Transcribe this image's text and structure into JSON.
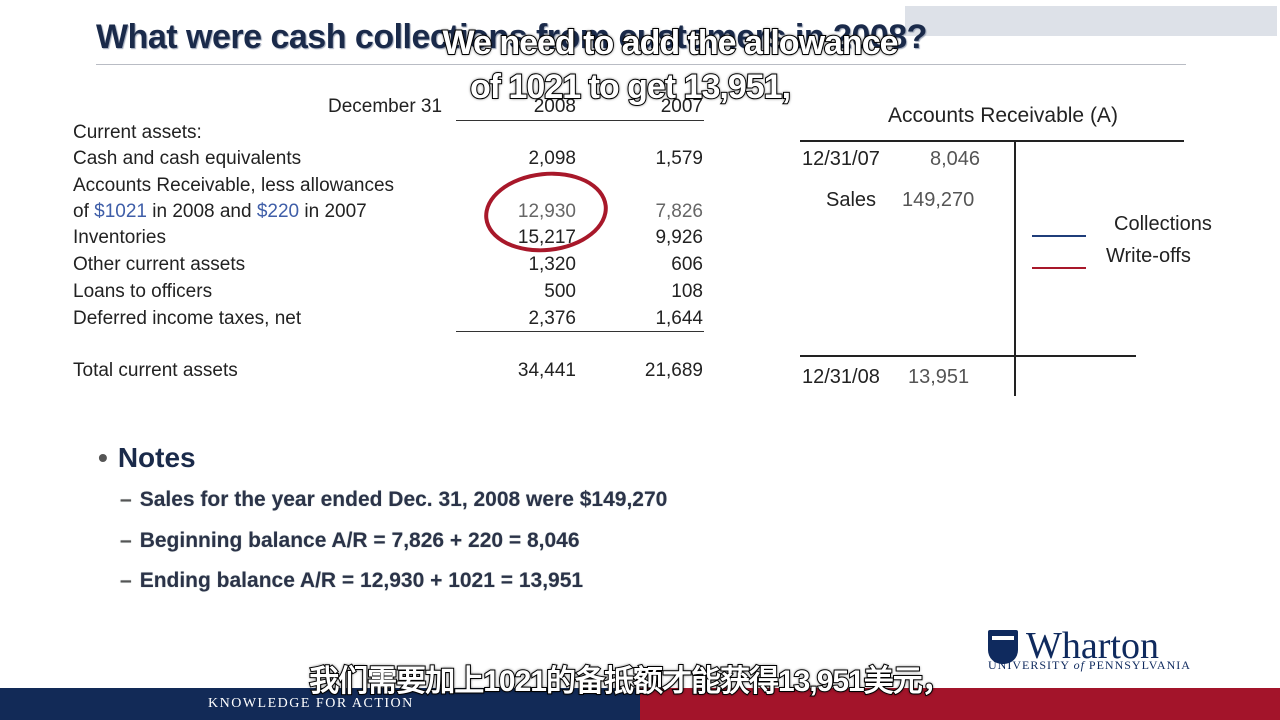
{
  "slide": {
    "title": "What were cash collections from customers in 2008?",
    "subtitle_en_line1": "We need to add the allowance",
    "subtitle_en_line2": "of 1021 to get 13,951,",
    "subtitle_zh": "我们需要加上1021的备抵额才能获得13,951美元，"
  },
  "balance_sheet": {
    "header_label": "December 31",
    "col_2008": "2008",
    "col_2007": "2007",
    "section_label": "Current assets:",
    "rows": [
      {
        "label": "Cash and cash equivalents",
        "v2008": "2,098",
        "v2007": "1,579"
      },
      {
        "label_line1": "Accounts Receivable, less allowances",
        "label_pre": "of ",
        "allow_2008": "$1021",
        "label_mid": " in 2008 and ",
        "allow_2007": "$220",
        "label_post": " in 2007",
        "v2008": "12,930",
        "v2007": "7,826"
      },
      {
        "label": "Inventories",
        "v2008": "15,217",
        "v2007": "9,926"
      },
      {
        "label": "Other current assets",
        "v2008": "1,320",
        "v2007": "606"
      },
      {
        "label": "Loans to officers",
        "v2008": "500",
        "v2007": "108"
      },
      {
        "label": "Deferred income taxes, net",
        "v2008": "2,376",
        "v2007": "1,644"
      }
    ],
    "total": {
      "label": "Total current assets",
      "v2008": "34,441",
      "v2007": "21,689"
    }
  },
  "t_account": {
    "title": "Accounts Receivable (A)",
    "beg_date": "12/31/07",
    "beg_value": "8,046",
    "sales_label": "Sales",
    "sales_value": "149,270",
    "end_date": "12/31/08",
    "end_value": "13,951",
    "legend": [
      {
        "label": "Collections",
        "color": "#1f3d7a"
      },
      {
        "label": "Write-offs",
        "color": "#a8182a"
      }
    ]
  },
  "notes": {
    "heading": "Notes",
    "items": [
      "Sales for the year ended Dec. 31, 2008 were $149,270",
      "Beginning balance A/R = 7,826 + 220 = 8,046",
      "Ending balance A/R = 12,930 + 1021 = 13,951"
    ]
  },
  "logo": {
    "name": "Wharton",
    "university_pre": "UNIVERSITY ",
    "university_of": "of",
    "university_post": " PENNSYLVANIA"
  },
  "footer": {
    "tagline": "KNOWLEDGE FOR ACTION"
  }
}
